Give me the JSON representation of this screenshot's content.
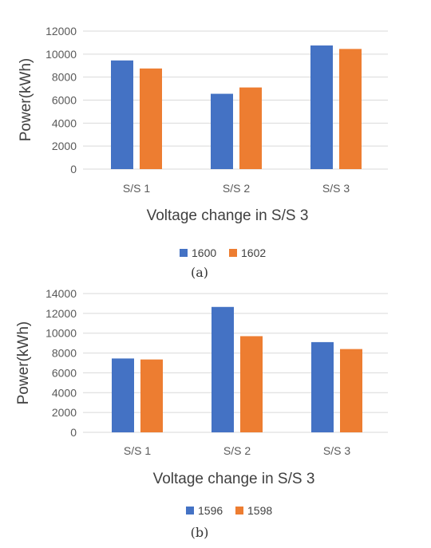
{
  "chart_data": [
    {
      "type": "bar",
      "caption": "(a)",
      "categories": [
        "S/S 1",
        "S/S 2",
        "S/S 3"
      ],
      "series": [
        {
          "name": "1600",
          "values": [
            9450,
            6550,
            10750
          ],
          "color": "#4472c4"
        },
        {
          "name": "1602",
          "values": [
            8750,
            7100,
            10450
          ],
          "color": "#ed7d31"
        }
      ],
      "xlabel": "Voltage change in S/S 3",
      "ylabel": "Power(kWh)",
      "ylim": [
        0,
        12000
      ],
      "yticks": [
        "12000",
        "10000",
        "8000",
        "6000",
        "4000",
        "2000",
        "0"
      ],
      "grid": true,
      "legend_position": "bottom"
    },
    {
      "type": "bar",
      "caption": "(b)",
      "categories": [
        "S/S 1",
        "S/S 2",
        "S/S 3"
      ],
      "series": [
        {
          "name": "1596",
          "values": [
            7450,
            12650,
            9100
          ],
          "color": "#4472c4"
        },
        {
          "name": "1598",
          "values": [
            7350,
            9700,
            8400
          ],
          "color": "#ed7d31"
        }
      ],
      "xlabel": "Voltage change in S/S 3",
      "ylabel": "Power(kWh)",
      "ylim": [
        0,
        14000
      ],
      "yticks": [
        "14000",
        "12000",
        "10000",
        "8000",
        "6000",
        "4000",
        "2000",
        "0"
      ],
      "grid": true,
      "legend_position": "bottom"
    }
  ]
}
